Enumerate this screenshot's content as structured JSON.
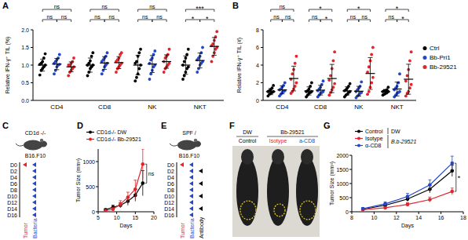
{
  "panel_labels": [
    "A",
    "B",
    "C",
    "D",
    "E",
    "F",
    "G"
  ],
  "chart_data": [
    {
      "type": "dot",
      "y_label": "Relative IFN-γ⁺ TIL (%)",
      "categories": [
        "CD4",
        "CD8",
        "NK",
        "NKT"
      ],
      "ylim": [
        0,
        2
      ],
      "yticks": [
        {
          "value": 0,
          "label": "0.0"
        },
        0.5,
        {
          "value": 1,
          "label": "1.0"
        },
        1.5,
        {
          "value": 2,
          "label": "2.0"
        }
      ],
      "series": [
        {
          "name": "Ctrl",
          "color": "#000000",
          "values": [
            [
              0.72,
              0.85,
              0.9,
              0.95,
              1.0,
              1.02,
              1.05,
              1.1,
              1.2,
              1.32
            ],
            [
              0.7,
              0.8,
              0.9,
              0.95,
              1.0,
              1.0,
              1.05,
              1.12,
              1.25,
              1.35
            ],
            [
              0.55,
              0.65,
              0.75,
              0.9,
              1.0,
              1.05,
              1.1,
              1.25,
              1.35,
              1.45
            ],
            [
              0.6,
              0.7,
              0.8,
              0.9,
              0.95,
              1.0,
              1.1,
              1.2,
              1.3,
              1.45
            ]
          ],
          "means": [
            1.0,
            1.0,
            1.0,
            1.0
          ],
          "sd": [
            0.17,
            0.2,
            0.28,
            0.26
          ]
        },
        {
          "name": "Bb-Pri1",
          "color": "#2447c9",
          "values": [
            [
              0.75,
              0.85,
              0.95,
              1.0,
              1.02,
              1.05,
              1.1,
              1.15,
              1.2,
              1.3
            ],
            [
              0.75,
              0.85,
              0.95,
              1.0,
              1.05,
              1.1,
              1.15,
              1.2,
              1.25,
              1.35
            ],
            [
              0.6,
              0.75,
              0.85,
              0.95,
              1.0,
              1.05,
              1.15,
              1.2,
              1.3,
              1.4
            ],
            [
              0.8,
              0.9,
              1.0,
              1.05,
              1.1,
              1.15,
              1.2,
              1.25,
              1.35,
              1.5
            ]
          ],
          "means": [
            1.03,
            1.06,
            1.03,
            1.13
          ],
          "sd": [
            0.16,
            0.18,
            0.24,
            0.21
          ]
        },
        {
          "name": "Bb-29521",
          "color": "#e3242b",
          "values": [
            [
              0.7,
              0.8,
              0.85,
              0.9,
              0.95,
              1.0,
              1.0,
              1.05,
              1.1,
              1.2
            ],
            [
              0.8,
              0.9,
              0.95,
              1.0,
              1.05,
              1.1,
              1.15,
              1.2,
              1.3,
              1.35
            ],
            [
              0.8,
              0.9,
              0.95,
              1.0,
              1.05,
              1.1,
              1.2,
              1.25,
              1.3,
              1.45
            ],
            [
              1.1,
              1.25,
              1.35,
              1.45,
              1.5,
              1.55,
              1.6,
              1.7,
              1.8,
              1.95
            ]
          ],
          "means": [
            0.95,
            1.07,
            1.1,
            1.53
          ],
          "sd": [
            0.14,
            0.17,
            0.19,
            0.25
          ]
        }
      ],
      "annotations": [
        {
          "category": "CD4",
          "groups": [
            "Ctrl",
            "Bb-29521"
          ],
          "text": "ns"
        },
        {
          "category": "CD4",
          "groups": [
            "Ctrl",
            "Bb-Pri1"
          ],
          "text": "ns"
        },
        {
          "category": "CD4",
          "groups": [
            "Bb-Pri1",
            "Bb-29521"
          ],
          "text": "ns"
        },
        {
          "category": "CD8",
          "groups": [
            "Ctrl",
            "Bb-29521"
          ],
          "text": "ns"
        },
        {
          "category": "CD8",
          "groups": [
            "Ctrl",
            "Bb-Pri1"
          ],
          "text": "ns"
        },
        {
          "category": "CD8",
          "groups": [
            "Bb-Pri1",
            "Bb-29521"
          ],
          "text": "ns"
        },
        {
          "category": "NK",
          "groups": [
            "Ctrl",
            "Bb-29521"
          ],
          "text": "ns"
        },
        {
          "category": "NK",
          "groups": [
            "Ctrl",
            "Bb-Pri1"
          ],
          "text": "ns"
        },
        {
          "category": "NK",
          "groups": [
            "Bb-Pri1",
            "Bb-29521"
          ],
          "text": "ns"
        },
        {
          "category": "NKT",
          "groups": [
            "Ctrl",
            "Bb-29521"
          ],
          "text": "***"
        },
        {
          "category": "NKT",
          "groups": [
            "Ctrl",
            "Bb-Pri1"
          ],
          "text": "*"
        },
        {
          "category": "NKT",
          "groups": [
            "Bb-Pri1",
            "Bb-29521"
          ],
          "text": "*"
        }
      ]
    },
    {
      "type": "dot",
      "y_label": "Relative IFN-γ⁺ TIL (#)",
      "categories": [
        "CD4",
        "CD8",
        "NK",
        "NKT"
      ],
      "ylim": [
        0,
        8
      ],
      "yticks": [
        0,
        2,
        4,
        6,
        8
      ],
      "legend": "right",
      "series": [
        {
          "name": "Ctrl",
          "color": "#000000",
          "values": [
            [
              0.5,
              0.7,
              0.8,
              0.9,
              1.0,
              1.0,
              1.1,
              1.2,
              1.4,
              1.7
            ],
            [
              0.4,
              0.6,
              0.8,
              0.9,
              1.0,
              1.0,
              1.1,
              1.3,
              1.6,
              2.0
            ],
            [
              0.4,
              0.6,
              0.7,
              0.9,
              1.0,
              1.1,
              1.2,
              1.4,
              1.6,
              1.9
            ],
            [
              0.6,
              0.7,
              0.8,
              0.9,
              1.0,
              1.0,
              1.1,
              1.1,
              1.2,
              1.5
            ]
          ],
          "means": [
            1.0,
            1.07,
            1.08,
            0.99
          ],
          "sd": [
            0.35,
            0.46,
            0.46,
            0.25
          ]
        },
        {
          "name": "Bb-Pri1",
          "color": "#2447c9",
          "values": [
            [
              0.5,
              0.7,
              0.9,
              1.0,
              1.1,
              1.2,
              1.3,
              1.5,
              1.7,
              2.0
            ],
            [
              0.4,
              0.6,
              0.8,
              0.9,
              1.0,
              1.1,
              1.3,
              1.5,
              1.8,
              2.2
            ],
            [
              0.3,
              0.5,
              0.6,
              0.8,
              0.9,
              1.0,
              1.2,
              1.4,
              1.6,
              2.1
            ],
            [
              0.4,
              0.6,
              0.8,
              0.9,
              1.0,
              1.2,
              1.4,
              1.6,
              2.0,
              3.0
            ]
          ],
          "means": [
            1.19,
            1.16,
            1.04,
            1.29
          ],
          "sd": [
            0.45,
            0.55,
            0.55,
            0.78
          ]
        },
        {
          "name": "Bb-29521",
          "color": "#e3242b",
          "values": [
            [
              0.8,
              1.0,
              1.3,
              1.6,
              2.0,
              2.4,
              3.0,
              3.5,
              4.2,
              5.0
            ],
            [
              0.6,
              0.9,
              1.2,
              1.5,
              1.9,
              2.3,
              2.8,
              3.6,
              4.5,
              5.5
            ],
            [
              0.7,
              1.0,
              1.5,
              2.0,
              2.6,
              3.2,
              3.8,
              4.5,
              5.2,
              6.0
            ],
            [
              0.5,
              0.8,
              1.0,
              1.4,
              1.8,
              2.2,
              2.8,
              3.5,
              4.5,
              5.5
            ]
          ],
          "means": [
            2.48,
            2.48,
            3.05,
            2.4
          ],
          "sd": [
            1.4,
            1.6,
            1.8,
            1.7
          ]
        }
      ],
      "annotations": [
        {
          "category": "CD4",
          "groups": [
            "Ctrl",
            "Bb-29521"
          ],
          "text": "ns"
        },
        {
          "category": "CD4",
          "groups": [
            "Ctrl",
            "Bb-Pri1"
          ],
          "text": "ns"
        },
        {
          "category": "CD4",
          "groups": [
            "Bb-Pri1",
            "Bb-29521"
          ],
          "text": "ns"
        },
        {
          "category": "CD8",
          "groups": [
            "Ctrl",
            "Bb-29521"
          ],
          "text": "*"
        },
        {
          "category": "CD8",
          "groups": [
            "Ctrl",
            "Bb-Pri1"
          ],
          "text": "ns"
        },
        {
          "category": "CD8",
          "groups": [
            "Bb-Pri1",
            "Bb-29521"
          ],
          "text": "*"
        },
        {
          "category": "NK",
          "groups": [
            "Ctrl",
            "Bb-29521"
          ],
          "text": "*"
        },
        {
          "category": "NK",
          "groups": [
            "Ctrl",
            "Bb-Pri1"
          ],
          "text": "ns"
        },
        {
          "category": "NK",
          "groups": [
            "Bb-Pri1",
            "Bb-29521"
          ],
          "text": "ns"
        },
        {
          "category": "NKT",
          "groups": [
            "Ctrl",
            "Bb-29521"
          ],
          "text": "*"
        },
        {
          "category": "NKT",
          "groups": [
            "Ctrl",
            "Bb-Pri1"
          ],
          "text": "ns"
        },
        {
          "category": "NKT",
          "groups": [
            "Bb-Pri1",
            "Bb-29521"
          ],
          "text": "*"
        }
      ]
    },
    {
      "type": "line",
      "y_label": "Tumor Size (mm³)",
      "x_label": "Days",
      "x": [
        7,
        9,
        11,
        13,
        15,
        17
      ],
      "xlim": [
        5,
        20
      ],
      "xticks": [
        5,
        10,
        15,
        20
      ],
      "ylim": [
        0,
        1250
      ],
      "yticks": [
        0,
        500,
        1000
      ],
      "legend": "top",
      "series": [
        {
          "name": "CD1d-/- DW",
          "color": "#000000",
          "marker": "circle",
          "values": [
            40,
            90,
            130,
            210,
            330,
            570
          ],
          "errors": [
            20,
            40,
            50,
            80,
            120,
            250
          ]
        },
        {
          "name": "CD1d-/- Bb-29521",
          "color": "#e3242b",
          "marker": "circle",
          "values": [
            20,
            50,
            150,
            290,
            450,
            950
          ],
          "errors": [
            10,
            30,
            70,
            100,
            180,
            300
          ]
        }
      ],
      "annotations": [
        {
          "series": [
            "CD1d-/- DW",
            "CD1d-/- Bb-29521"
          ],
          "text": "ns"
        }
      ]
    },
    {
      "type": "line",
      "y_label": "Tumor Size (mm³)",
      "x_label": "Days",
      "x": [
        9,
        11,
        13,
        15,
        17
      ],
      "xlim": [
        8,
        18
      ],
      "xticks": [
        8,
        10,
        12,
        14,
        16,
        18
      ],
      "ylim": [
        0,
        2000
      ],
      "yticks": [
        0,
        500,
        1000,
        1500,
        2000
      ],
      "legend": "top",
      "series": [
        {
          "name": "Control",
          "color": "#000000",
          "marker": "circle",
          "values": [
            90,
            230,
            450,
            800,
            1450
          ],
          "errors": [
            30,
            60,
            90,
            130,
            200
          ]
        },
        {
          "name": "Isotype",
          "color": "#e3242b",
          "marker": "circle",
          "values": [
            70,
            140,
            260,
            430,
            720
          ],
          "errors": [
            20,
            40,
            60,
            90,
            120
          ]
        },
        {
          "name": "α-CD8",
          "color": "#2447c9",
          "marker": "circle",
          "values": [
            110,
            280,
            540,
            950,
            1720
          ],
          "errors": [
            40,
            70,
            110,
            180,
            250
          ]
        }
      ],
      "legend_groups": [
        {
          "text": "DW",
          "series": [
            "Control"
          ]
        },
        {
          "text": "B.b-29521",
          "series": [
            "Isotype",
            "α-CD8"
          ]
        }
      ],
      "annotations": [
        {
          "series": [
            "Isotype",
            "α-CD8"
          ],
          "text": "*"
        }
      ]
    }
  ],
  "schematics": [
    {
      "strain": "CD1d -/-",
      "tumor_line": "B16.F10",
      "days": [
        "D0",
        "D2",
        "D4",
        "D6",
        "D8",
        "D10",
        "D12",
        "D14",
        "D16"
      ],
      "tracks": [
        {
          "name": "Tumor",
          "color": "#e3242b",
          "days": [
            "D0"
          ]
        },
        {
          "name": "Bacteria",
          "color": "#2447c9",
          "days": [
            "D0",
            "D2",
            "D4",
            "D6",
            "D8",
            "D10",
            "D12",
            "D14",
            "D16"
          ]
        }
      ]
    },
    {
      "strain": "SPF /",
      "tumor_line": "B16.F10",
      "days": [
        "D0",
        "D2",
        "D4",
        "D6",
        "D8",
        "D10",
        "D12",
        "D14",
        "D16"
      ],
      "tracks": [
        {
          "name": "Tumor",
          "color": "#e3242b",
          "days": [
            "D0"
          ]
        },
        {
          "name": "Bacteria",
          "color": "#2447c9",
          "days": [
            "D0",
            "D2",
            "D4",
            "D6",
            "D8",
            "D10",
            "D12",
            "D14",
            "D16"
          ]
        },
        {
          "name": "Antibody",
          "color": "#000000",
          "days": [
            "D2",
            "D6",
            "D10",
            "D14"
          ]
        }
      ]
    }
  ],
  "photo": {
    "treatments": [
      {
        "text": "DW",
        "groups": [
          0
        ]
      },
      {
        "text": "Bb-29521",
        "groups": [
          1,
          2
        ]
      }
    ],
    "groups": [
      {
        "text": "Control",
        "color": "#000000"
      },
      {
        "text": "Isotype",
        "color": "#e3242b"
      },
      {
        "text": "a-CD8",
        "color": "#2447c9"
      }
    ]
  }
}
